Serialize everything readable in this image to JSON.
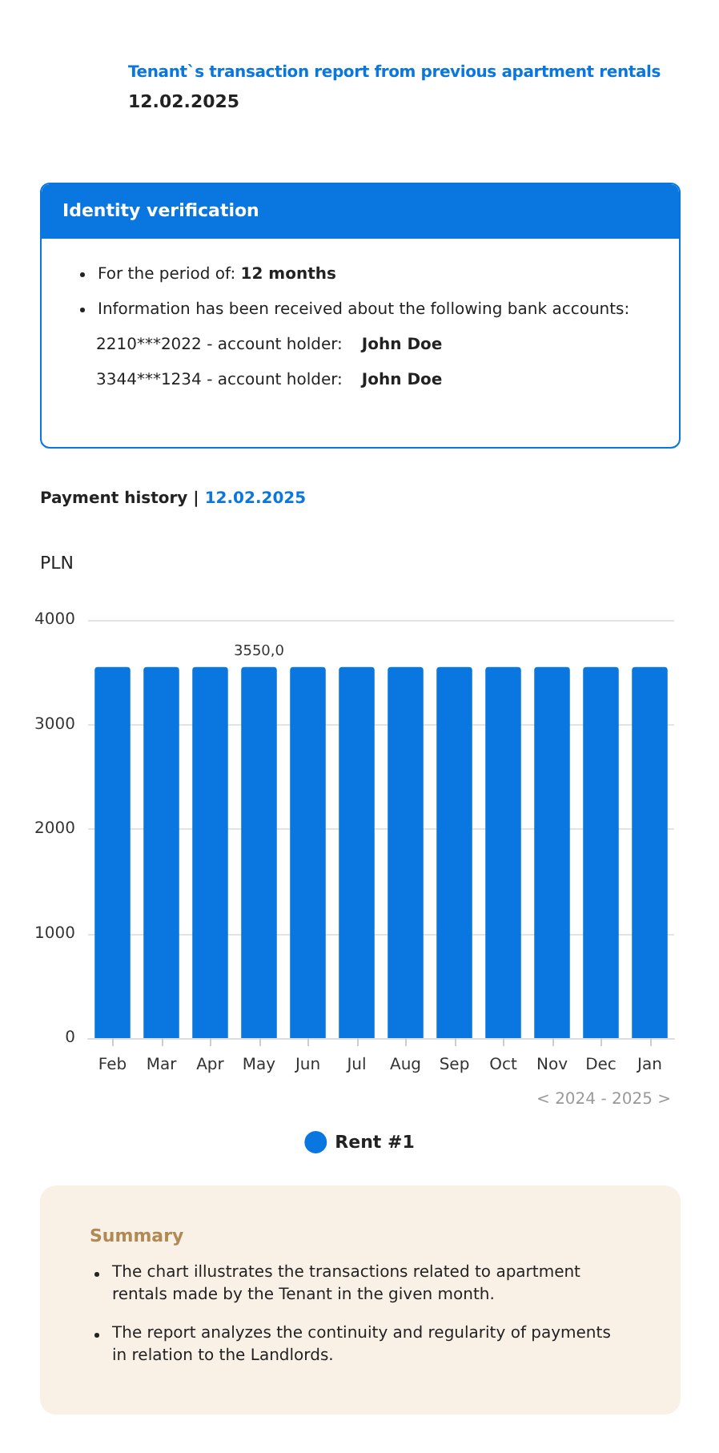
{
  "chart_data": {
    "type": "bar",
    "title": "Tenant`s transaction report from previous apartment rentals",
    "subtitle": "12.02.2025",
    "ylabel": "PLN",
    "annotations": [
      "Identity verification",
      "For the period of:",
      "12 months",
      "Information has been received about the following bank accounts:",
      "2210***2022 - account holder:",
      "John Doe",
      "3344***1234 - account holder:",
      "John Doe",
      "Payment history |",
      "12.02.2025",
      "< 2024 - 2025 >",
      "Summary",
      "The chart illustrates the transactions related to apartment rentals made by the Tenant in the given month.",
      "The report analyzes the continuity and regularity of payments in relation to the Landlords."
    ],
    "categories": [
      "Feb",
      "Mar",
      "Apr",
      "May",
      "Jun",
      "Jul",
      "Aug",
      "Sep",
      "Oct",
      "Nov",
      "Dec",
      "Jan"
    ],
    "series": [
      {
        "name": "Rent #1",
        "color": "#0a77e0",
        "values": [
          3550,
          3550,
          3550,
          3550,
          3550,
          3550,
          3550,
          3550,
          3550,
          3550,
          3550,
          3550
        ],
        "value_labels": [
          null,
          null,
          null,
          "3550,0",
          null,
          null,
          null,
          null,
          null,
          null,
          null,
          null
        ]
      }
    ],
    "ylim": [
      0,
      4000
    ],
    "yticks": [
      0,
      1000,
      2000,
      3000,
      4000
    ],
    "grid": "y",
    "legend": "bottom"
  }
}
